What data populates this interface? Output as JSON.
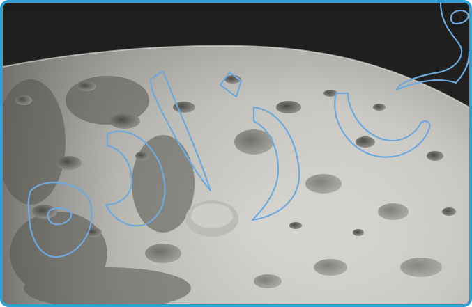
{
  "image": {
    "subject": "lunar-surface-photo",
    "palette": {
      "frame": "#2f9fd6",
      "space": "#232323",
      "surface_light": "#d8d6d1",
      "surface_mid": "#a9a7a2",
      "shadow": "#5e5d5a",
      "outline": "#6fa9dc"
    }
  }
}
